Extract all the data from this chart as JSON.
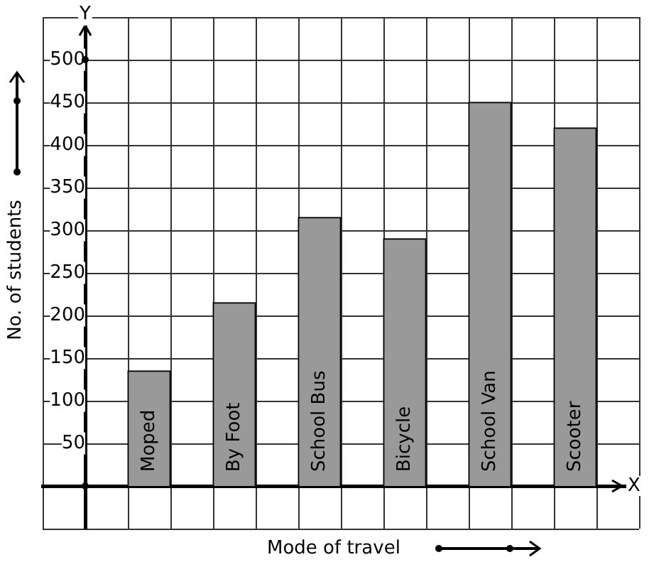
{
  "chart_data": {
    "type": "bar",
    "xlabel": "Mode of travel",
    "ylabel": "No. of students",
    "categories": [
      "Moped",
      "By Foot",
      "School Bus",
      "Bicycle",
      "School Van",
      "Scooter"
    ],
    "values": [
      135,
      215,
      315,
      290,
      450,
      420
    ],
    "color": "#999999",
    "ylim": [
      -50,
      550
    ],
    "yticks": [
      50,
      100,
      150,
      200,
      250,
      300,
      350,
      400,
      450,
      500
    ],
    "grid": true,
    "annotations": [
      "X",
      "Y"
    ]
  }
}
